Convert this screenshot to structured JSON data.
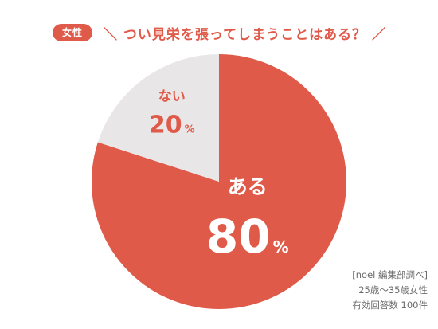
{
  "header": {
    "badge": "女性",
    "title": "＼ つい見栄を張ってしまうことはある？ ／"
  },
  "chart_data": {
    "type": "pie",
    "title": "＼ つい見栄を張ってしまうことはある？ ／",
    "percent_unit": "%",
    "slices": [
      {
        "label": "ある",
        "value": 80,
        "color": "#e05a4a",
        "text_color": "#ffffff"
      },
      {
        "label": "ない",
        "value": 20,
        "color": "#e8e6e6",
        "text_color": "#e05a4a"
      }
    ]
  },
  "source": {
    "line1": "[noel 編集部調べ]",
    "line2": "25歳〜35歳女性",
    "line3": "有効回答数 100件"
  }
}
